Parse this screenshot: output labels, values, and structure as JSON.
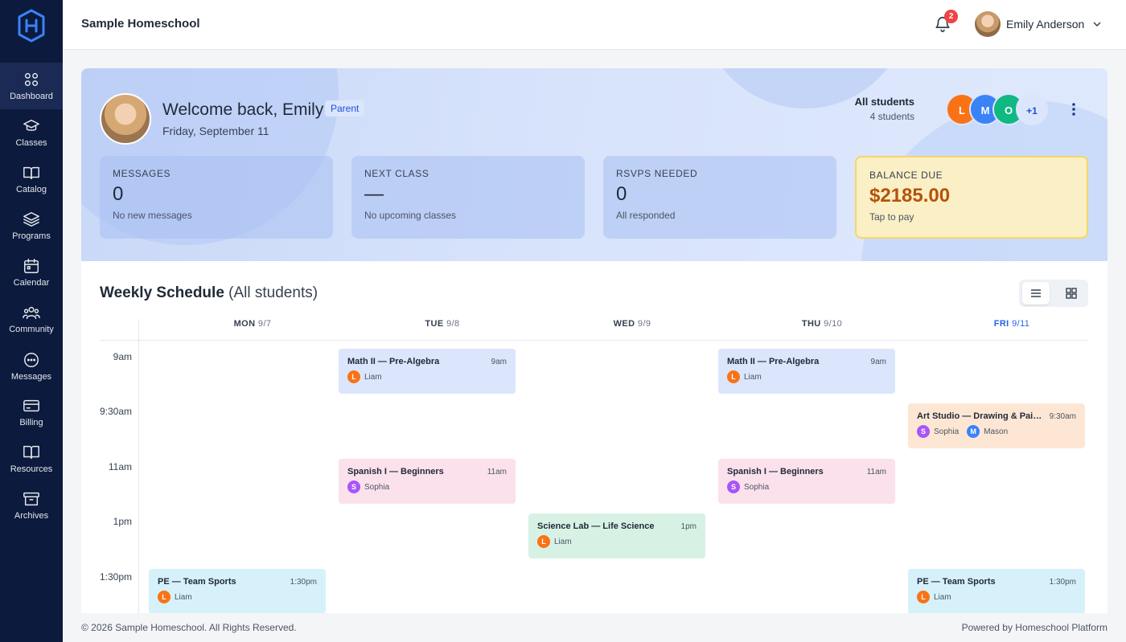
{
  "app": {
    "school_name": "Sample Homeschool",
    "logo_icon": "h-logo-icon"
  },
  "sidebar": {
    "items": [
      {
        "label": "Dashboard",
        "icon": "grid-icon",
        "active": true
      },
      {
        "label": "Classes",
        "icon": "graduation-cap-icon"
      },
      {
        "label": "Catalog",
        "icon": "book-open-icon"
      },
      {
        "label": "Programs",
        "icon": "layers-icon"
      },
      {
        "label": "Calendar",
        "icon": "calendar-icon"
      },
      {
        "label": "Community",
        "icon": "users-icon"
      },
      {
        "label": "Messages",
        "icon": "message-icon"
      },
      {
        "label": "Billing",
        "icon": "credit-card-icon"
      },
      {
        "label": "Resources",
        "icon": "book-icon"
      },
      {
        "label": "Archives",
        "icon": "archive-icon"
      }
    ]
  },
  "header": {
    "notifications_count": "2",
    "user_name": "Emily Anderson"
  },
  "hero": {
    "welcome": "Welcome back, Emily",
    "role": "Parent",
    "date": "Friday, September 11",
    "students_title": "All students",
    "students_count": "4 students",
    "student_avatars": [
      {
        "initial": "L",
        "color": "#f97316"
      },
      {
        "initial": "M",
        "color": "#3b82f6"
      },
      {
        "initial": "O",
        "color": "#10b981"
      },
      {
        "initial": "+1",
        "color": "#dbe6fd",
        "text_color": "#1d4ed8"
      }
    ]
  },
  "stats": [
    {
      "label": "MESSAGES",
      "value": "0",
      "sub": "No new messages"
    },
    {
      "label": "NEXT CLASS",
      "value": "—",
      "sub": "No upcoming classes"
    },
    {
      "label": "RSVPS NEEDED",
      "value": "0",
      "sub": "All responded"
    },
    {
      "label": "BALANCE DUE",
      "value": "$2185.00",
      "sub": "Tap to pay"
    }
  ],
  "schedule": {
    "title": "Weekly Schedule",
    "subtitle": "(All students)",
    "days": [
      {
        "name": "MON",
        "date": "9/7"
      },
      {
        "name": "TUE",
        "date": "9/8"
      },
      {
        "name": "WED",
        "date": "9/9"
      },
      {
        "name": "THU",
        "date": "9/10"
      },
      {
        "name": "FRI",
        "date": "9/11",
        "today": true
      }
    ],
    "times": [
      "9am",
      "9:30am",
      "11am",
      "1pm",
      "1:30pm"
    ],
    "events": [
      {
        "day": "TUE",
        "slot": "9am",
        "title": "Math II — Pre-Algebra",
        "time": "9am",
        "type": "math",
        "people": [
          {
            "initial": "L",
            "name": "Liam",
            "color": "#f97316"
          }
        ]
      },
      {
        "day": "THU",
        "slot": "9am",
        "title": "Math II — Pre-Algebra",
        "time": "9am",
        "type": "math",
        "people": [
          {
            "initial": "L",
            "name": "Liam",
            "color": "#f97316"
          }
        ]
      },
      {
        "day": "FRI",
        "slot": "9:30am",
        "title": "Art Studio — Drawing & Painting",
        "time": "9:30am",
        "type": "art",
        "people": [
          {
            "initial": "S",
            "name": "Sophia",
            "color": "#a855f7"
          },
          {
            "initial": "M",
            "name": "Mason",
            "color": "#3b82f6"
          }
        ]
      },
      {
        "day": "TUE",
        "slot": "11am",
        "title": "Spanish I — Beginners",
        "time": "11am",
        "type": "span",
        "people": [
          {
            "initial": "S",
            "name": "Sophia",
            "color": "#a855f7"
          }
        ]
      },
      {
        "day": "THU",
        "slot": "11am",
        "title": "Spanish I — Beginners",
        "time": "11am",
        "type": "span",
        "people": [
          {
            "initial": "S",
            "name": "Sophia",
            "color": "#a855f7"
          }
        ]
      },
      {
        "day": "WED",
        "slot": "1pm",
        "title": "Science Lab — Life Science",
        "time": "1pm",
        "type": "sci",
        "people": [
          {
            "initial": "L",
            "name": "Liam",
            "color": "#f97316"
          }
        ]
      },
      {
        "day": "MON",
        "slot": "1:30pm",
        "title": "PE — Team Sports",
        "time": "1:30pm",
        "type": "pe",
        "people": [
          {
            "initial": "L",
            "name": "Liam",
            "color": "#f97316"
          }
        ]
      },
      {
        "day": "FRI",
        "slot": "1:30pm",
        "title": "PE — Team Sports",
        "time": "1:30pm",
        "type": "pe",
        "people": [
          {
            "initial": "L",
            "name": "Liam",
            "color": "#f97316"
          }
        ]
      }
    ]
  },
  "footer": {
    "copyright": "© 2026 Sample Homeschool. All Rights Reserved.",
    "powered": "Powered by Homeschool Platform"
  }
}
